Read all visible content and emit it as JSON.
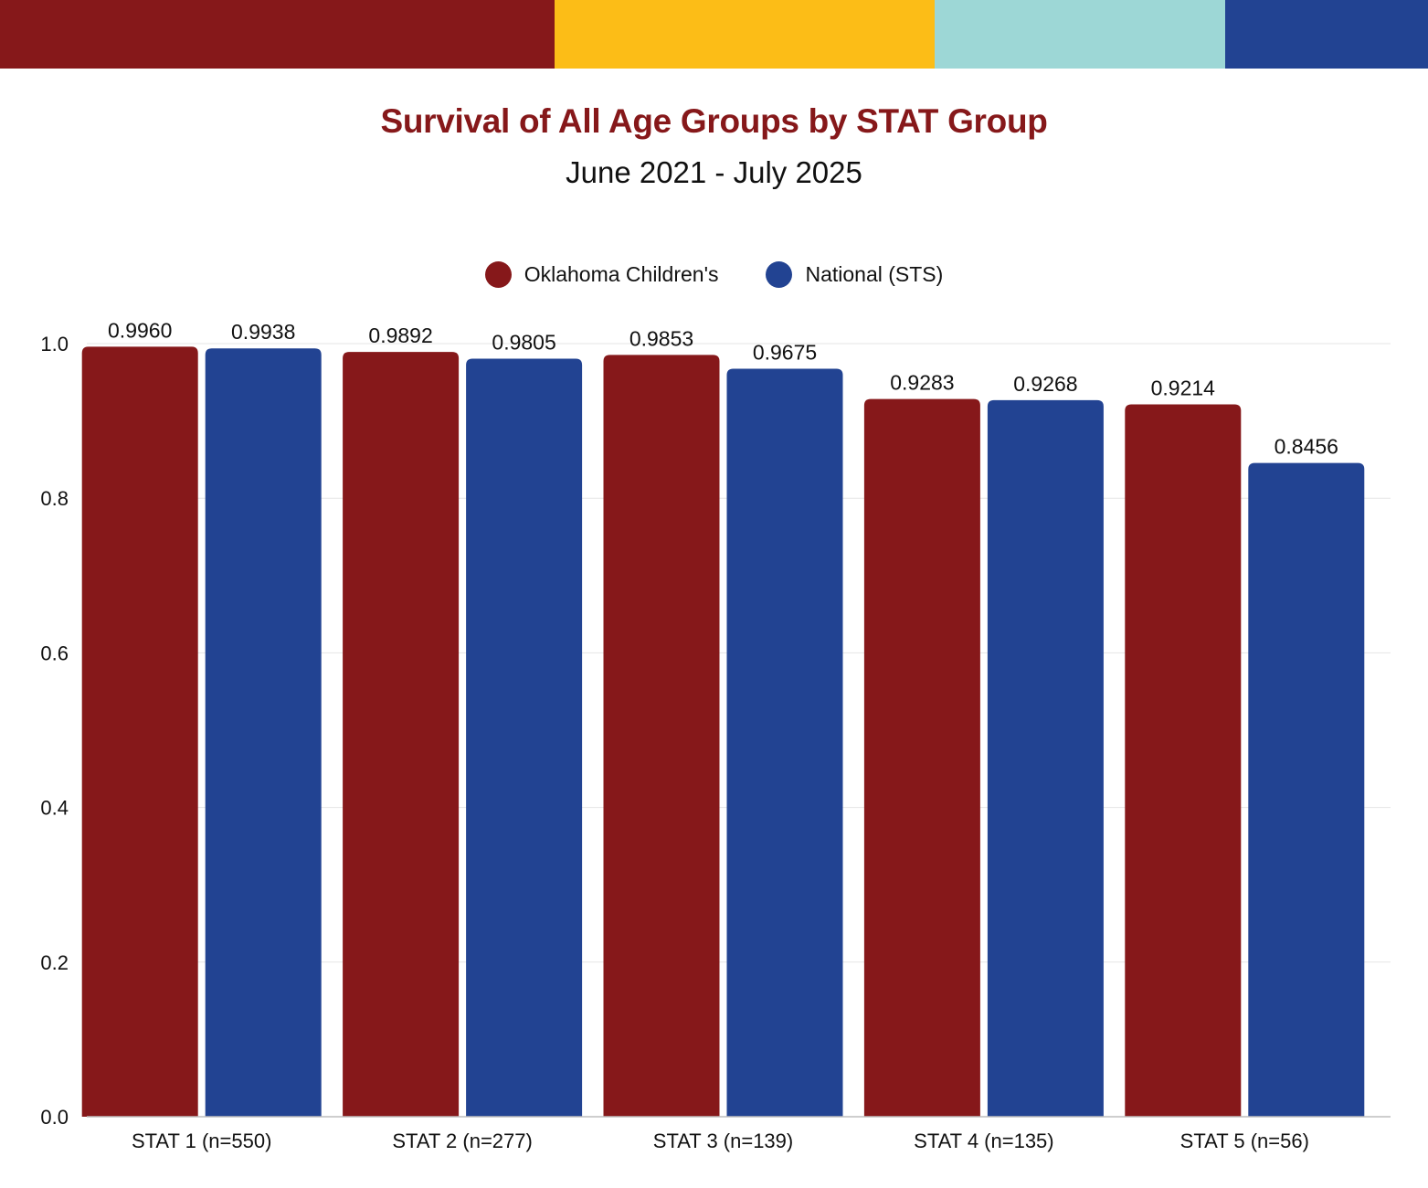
{
  "header_stripes": [
    {
      "name": "crimson",
      "color": "#86181a",
      "weight": 607
    },
    {
      "name": "gold",
      "color": "#fcbd17",
      "weight": 415
    },
    {
      "name": "teal",
      "color": "#9dd7d6",
      "weight": 318
    },
    {
      "name": "navy",
      "color": "#224392",
      "weight": 222
    }
  ],
  "chart_data": {
    "type": "bar",
    "title": "Survival of All Age Groups by STAT Group",
    "subtitle": "June 2021 - July 2025",
    "xlabel": "",
    "ylabel": "",
    "ylim": [
      0,
      1.0
    ],
    "yticks": [
      0.0,
      0.2,
      0.4,
      0.6,
      0.8,
      1.0
    ],
    "ytick_labels": [
      "0.0",
      "0.2",
      "0.4",
      "0.6",
      "0.8",
      "1.0"
    ],
    "grid": true,
    "legend_position": "top-center",
    "categories": [
      "STAT 1 (n=550)",
      "STAT 2 (n=277)",
      "STAT 3 (n=139)",
      "STAT 4 (n=135)",
      "STAT 5 (n=56)"
    ],
    "series": [
      {
        "name": "Oklahoma Children's",
        "color": "#86181a",
        "values": [
          0.996,
          0.9892,
          0.9853,
          0.9283,
          0.9214
        ],
        "labels": [
          "0.9960",
          "0.9892",
          "0.9853",
          "0.9283",
          "0.9214"
        ]
      },
      {
        "name": "National (STS)",
        "color": "#224392",
        "values": [
          0.9938,
          0.9805,
          0.9675,
          0.9268,
          0.8456
        ],
        "labels": [
          "0.9938",
          "0.9805",
          "0.9675",
          "0.9268",
          "0.8456"
        ]
      }
    ]
  }
}
